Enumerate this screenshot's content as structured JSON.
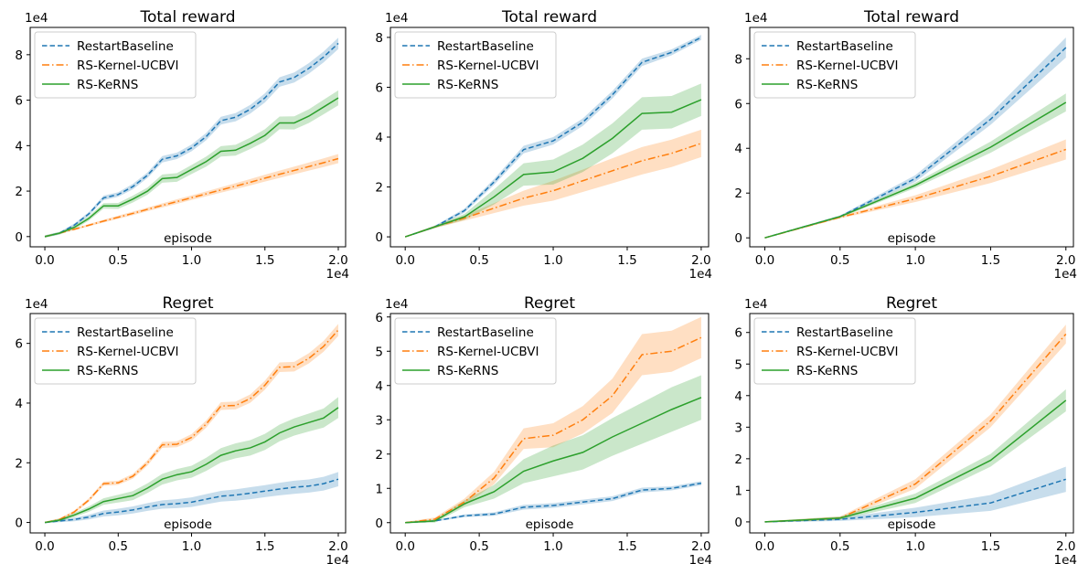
{
  "colors": {
    "RestartBaseline": "#1f77b4",
    "RS-Kernel-UCBVI": "#ff7f0e",
    "RS-KeRNS": "#2ca02c"
  },
  "chart_data": [
    {
      "type": "line",
      "title": "Total reward",
      "xlabel": "episode",
      "ylabel": "",
      "x_multiplier_label": "1e4",
      "y_multiplier_label": "1e4",
      "xlim": [
        -0.1,
        2.05
      ],
      "ylim": [
        -0.45,
        9.2
      ],
      "xticks": [
        0.0,
        0.5,
        1.0,
        1.5,
        2.0
      ],
      "xtick_labels": [
        "0.0",
        "0.5",
        "1.0",
        "1.5",
        "2.0"
      ],
      "yticks": [
        0,
        2,
        4,
        6,
        8
      ],
      "ytick_labels": [
        "0",
        "2",
        "4",
        "6",
        "8"
      ],
      "legend": "upper left",
      "x": [
        0.0,
        0.1,
        0.2,
        0.3,
        0.4,
        0.5,
        0.6,
        0.7,
        0.8,
        0.9,
        1.0,
        1.1,
        1.2,
        1.3,
        1.4,
        1.5,
        1.6,
        1.7,
        1.8,
        1.9,
        2.0
      ],
      "series": [
        {
          "name": "RestartBaseline",
          "style": "dashed",
          "values": [
            0.0,
            0.15,
            0.5,
            1.0,
            1.7,
            1.85,
            2.2,
            2.7,
            3.4,
            3.55,
            3.9,
            4.4,
            5.1,
            5.25,
            5.6,
            6.1,
            6.8,
            7.0,
            7.4,
            7.9,
            8.5
          ],
          "band": [
            0.05,
            0.05,
            0.07,
            0.08,
            0.1,
            0.1,
            0.12,
            0.12,
            0.14,
            0.14,
            0.15,
            0.16,
            0.17,
            0.18,
            0.19,
            0.2,
            0.21,
            0.22,
            0.23,
            0.24,
            0.25
          ]
        },
        {
          "name": "RS-Kernel-UCBVI",
          "style": "dashdot",
          "values": [
            0.0,
            0.15,
            0.32,
            0.5,
            0.68,
            0.85,
            1.02,
            1.2,
            1.37,
            1.54,
            1.71,
            1.88,
            2.05,
            2.22,
            2.39,
            2.57,
            2.74,
            2.91,
            3.08,
            3.25,
            3.43
          ],
          "band": [
            0.03,
            0.03,
            0.04,
            0.05,
            0.06,
            0.07,
            0.08,
            0.08,
            0.09,
            0.1,
            0.1,
            0.11,
            0.12,
            0.13,
            0.14,
            0.15,
            0.16,
            0.17,
            0.18,
            0.19,
            0.2
          ]
        },
        {
          "name": "RS-KeRNS",
          "style": "solid",
          "values": [
            0.0,
            0.15,
            0.4,
            0.8,
            1.35,
            1.35,
            1.65,
            2.0,
            2.55,
            2.6,
            2.95,
            3.3,
            3.75,
            3.8,
            4.1,
            4.45,
            5.0,
            5.0,
            5.3,
            5.7,
            6.1
          ],
          "band": [
            0.05,
            0.06,
            0.08,
            0.1,
            0.12,
            0.13,
            0.15,
            0.16,
            0.18,
            0.19,
            0.2,
            0.22,
            0.23,
            0.24,
            0.25,
            0.27,
            0.28,
            0.29,
            0.3,
            0.32,
            0.33
          ]
        }
      ]
    },
    {
      "type": "line",
      "title": "Total reward",
      "xlabel": "",
      "ylabel": "",
      "x_multiplier_label": "1e4",
      "y_multiplier_label": "1e4",
      "xlim": [
        -0.1,
        2.05
      ],
      "ylim": [
        -0.4,
        8.4
      ],
      "xticks": [
        0.0,
        0.5,
        1.0,
        1.5,
        2.0
      ],
      "xtick_labels": [
        "0.0",
        "0.5",
        "1.0",
        "1.5",
        "2.0"
      ],
      "yticks": [
        0,
        2,
        4,
        6,
        8
      ],
      "ytick_labels": [
        "0",
        "2",
        "4",
        "6",
        "8"
      ],
      "legend": "upper left",
      "x": [
        0.0,
        0.2,
        0.4,
        0.6,
        0.8,
        1.0,
        1.2,
        1.4,
        1.6,
        1.8,
        2.0
      ],
      "series": [
        {
          "name": "RestartBaseline",
          "style": "dashed",
          "values": [
            0.0,
            0.4,
            1.05,
            2.2,
            3.5,
            3.85,
            4.6,
            5.7,
            7.0,
            7.4,
            8.0
          ],
          "band": [
            0.02,
            0.05,
            0.08,
            0.12,
            0.15,
            0.15,
            0.15,
            0.15,
            0.15,
            0.12,
            0.1
          ]
        },
        {
          "name": "RS-Kernel-UCBVI",
          "style": "dashdot",
          "values": [
            0.0,
            0.4,
            0.75,
            1.15,
            1.55,
            1.85,
            2.25,
            2.65,
            3.05,
            3.35,
            3.75
          ],
          "band": [
            0.02,
            0.05,
            0.1,
            0.2,
            0.3,
            0.4,
            0.45,
            0.5,
            0.55,
            0.55,
            0.55
          ]
        },
        {
          "name": "RS-KeRNS",
          "style": "solid",
          "values": [
            0.0,
            0.4,
            0.8,
            1.6,
            2.5,
            2.6,
            3.15,
            3.95,
            4.95,
            5.0,
            5.5
          ],
          "band": [
            0.02,
            0.05,
            0.12,
            0.3,
            0.45,
            0.5,
            0.55,
            0.6,
            0.65,
            0.65,
            0.65
          ]
        }
      ]
    },
    {
      "type": "line",
      "title": "Total reward",
      "xlabel": "episode",
      "ylabel": "",
      "x_multiplier_label": "1e4",
      "y_multiplier_label": "1e4",
      "xlim": [
        -0.1,
        2.05
      ],
      "ylim": [
        -0.4,
        9.4
      ],
      "xticks": [
        0.0,
        0.5,
        1.0,
        1.5,
        2.0
      ],
      "xtick_labels": [
        "0.0",
        "0.5",
        "1.0",
        "1.5",
        "2.0"
      ],
      "yticks": [
        0,
        2,
        4,
        6,
        8
      ],
      "ytick_labels": [
        "0",
        "2",
        "4",
        "6",
        "8"
      ],
      "legend": "upper left",
      "x": [
        0.0,
        0.5,
        1.0,
        1.5,
        2.0
      ],
      "series": [
        {
          "name": "RestartBaseline",
          "style": "dashed",
          "values": [
            0.0,
            0.95,
            2.65,
            5.3,
            8.5
          ],
          "band": [
            0.02,
            0.05,
            0.15,
            0.25,
            0.45
          ]
        },
        {
          "name": "RS-Kernel-UCBVI",
          "style": "dashdot",
          "values": [
            0.0,
            0.92,
            1.75,
            2.75,
            3.95
          ],
          "band": [
            0.02,
            0.05,
            0.15,
            0.3,
            0.45
          ]
        },
        {
          "name": "RS-KeRNS",
          "style": "solid",
          "values": [
            0.0,
            0.95,
            2.35,
            4.05,
            6.05
          ],
          "band": [
            0.02,
            0.05,
            0.12,
            0.25,
            0.4
          ]
        }
      ]
    },
    {
      "type": "line",
      "title": "Regret",
      "xlabel": "episode",
      "ylabel": "",
      "x_multiplier_label": "1e4",
      "y_multiplier_label": "1e4",
      "xlim": [
        -0.1,
        2.05
      ],
      "ylim": [
        -0.35,
        7.0
      ],
      "xticks": [
        0.0,
        0.5,
        1.0,
        1.5,
        2.0
      ],
      "xtick_labels": [
        "0.0",
        "0.5",
        "1.0",
        "1.5",
        "2.0"
      ],
      "yticks": [
        0,
        2,
        4,
        6
      ],
      "ytick_labels": [
        "0",
        "2",
        "4",
        "6"
      ],
      "legend": "upper left",
      "x": [
        0.0,
        0.1,
        0.2,
        0.3,
        0.4,
        0.5,
        0.6,
        0.7,
        0.8,
        0.9,
        1.0,
        1.1,
        1.2,
        1.3,
        1.4,
        1.5,
        1.6,
        1.7,
        1.8,
        1.9,
        2.0
      ],
      "series": [
        {
          "name": "RestartBaseline",
          "style": "dashed",
          "values": [
            0.0,
            0.05,
            0.1,
            0.18,
            0.3,
            0.35,
            0.42,
            0.52,
            0.6,
            0.63,
            0.68,
            0.78,
            0.88,
            0.92,
            0.98,
            1.05,
            1.12,
            1.18,
            1.22,
            1.3,
            1.45
          ],
          "band": [
            0.02,
            0.04,
            0.06,
            0.08,
            0.1,
            0.11,
            0.12,
            0.13,
            0.14,
            0.15,
            0.16,
            0.17,
            0.18,
            0.19,
            0.2,
            0.2,
            0.21,
            0.22,
            0.22,
            0.23,
            0.24
          ]
        },
        {
          "name": "RS-Kernel-UCBVI",
          "style": "dashdot",
          "values": [
            0.0,
            0.1,
            0.35,
            0.75,
            1.3,
            1.33,
            1.55,
            2.0,
            2.6,
            2.62,
            2.85,
            3.3,
            3.9,
            3.92,
            4.15,
            4.6,
            5.2,
            5.22,
            5.5,
            5.9,
            6.45
          ],
          "band": [
            0.02,
            0.04,
            0.05,
            0.06,
            0.07,
            0.07,
            0.08,
            0.09,
            0.1,
            0.1,
            0.11,
            0.12,
            0.13,
            0.13,
            0.14,
            0.15,
            0.16,
            0.16,
            0.17,
            0.18,
            0.2
          ]
        },
        {
          "name": "RS-KeRNS",
          "style": "solid",
          "values": [
            0.0,
            0.08,
            0.25,
            0.45,
            0.7,
            0.8,
            0.9,
            1.15,
            1.45,
            1.6,
            1.7,
            1.95,
            2.25,
            2.4,
            2.5,
            2.7,
            3.0,
            3.2,
            3.35,
            3.5,
            3.85
          ],
          "band": [
            0.03,
            0.05,
            0.07,
            0.09,
            0.11,
            0.13,
            0.15,
            0.16,
            0.18,
            0.19,
            0.2,
            0.22,
            0.24,
            0.25,
            0.26,
            0.27,
            0.28,
            0.29,
            0.3,
            0.32,
            0.35
          ]
        }
      ]
    },
    {
      "type": "line",
      "title": "Regret",
      "xlabel": "episode",
      "ylabel": "",
      "x_multiplier_label": "1e4",
      "y_multiplier_label": "1e4",
      "xlim": [
        -0.1,
        2.05
      ],
      "ylim": [
        -0.3,
        6.1
      ],
      "xticks": [
        0.0,
        0.5,
        1.0,
        1.5,
        2.0
      ],
      "xtick_labels": [
        "0.0",
        "0.5",
        "1.0",
        "1.5",
        "2.0"
      ],
      "yticks": [
        0,
        1,
        2,
        3,
        4,
        5,
        6
      ],
      "ytick_labels": [
        "0",
        "1",
        "2",
        "3",
        "4",
        "5",
        "6"
      ],
      "legend": "upper left",
      "x": [
        0.0,
        0.2,
        0.4,
        0.6,
        0.8,
        1.0,
        1.2,
        1.4,
        1.6,
        1.8,
        2.0
      ],
      "series": [
        {
          "name": "RestartBaseline",
          "style": "dashed",
          "values": [
            0.0,
            0.05,
            0.2,
            0.25,
            0.45,
            0.5,
            0.6,
            0.7,
            0.95,
            1.0,
            1.15
          ],
          "band": [
            0.01,
            0.02,
            0.04,
            0.05,
            0.07,
            0.07,
            0.07,
            0.07,
            0.07,
            0.06,
            0.06
          ]
        },
        {
          "name": "RS-Kernel-UCBVI",
          "style": "dashdot",
          "values": [
            0.0,
            0.1,
            0.6,
            1.3,
            2.45,
            2.55,
            3.0,
            3.7,
            4.9,
            5.0,
            5.4
          ],
          "band": [
            0.02,
            0.05,
            0.1,
            0.18,
            0.3,
            0.35,
            0.4,
            0.5,
            0.6,
            0.6,
            0.6
          ]
        },
        {
          "name": "RS-KeRNS",
          "style": "solid",
          "values": [
            0.0,
            0.05,
            0.55,
            0.9,
            1.5,
            1.8,
            2.05,
            2.5,
            2.9,
            3.3,
            3.65
          ],
          "band": [
            0.02,
            0.05,
            0.1,
            0.2,
            0.35,
            0.45,
            0.5,
            0.55,
            0.6,
            0.65,
            0.65
          ]
        }
      ]
    },
    {
      "type": "line",
      "title": "Regret",
      "xlabel": "episode",
      "ylabel": "",
      "x_multiplier_label": "1e4",
      "y_multiplier_label": "1e4",
      "xlim": [
        -0.1,
        2.05
      ],
      "ylim": [
        -0.35,
        6.6
      ],
      "xticks": [
        0.0,
        0.5,
        1.0,
        1.5,
        2.0
      ],
      "xtick_labels": [
        "0.0",
        "0.5",
        "1.0",
        "1.5",
        "2.0"
      ],
      "yticks": [
        0,
        1,
        2,
        3,
        4,
        5,
        6
      ],
      "ytick_labels": [
        "0",
        "1",
        "2",
        "3",
        "4",
        "5",
        "6"
      ],
      "legend": "upper left",
      "x": [
        0.0,
        0.5,
        1.0,
        1.5,
        2.0
      ],
      "series": [
        {
          "name": "RestartBaseline",
          "style": "dashed",
          "values": [
            0.0,
            0.08,
            0.3,
            0.6,
            1.35
          ],
          "band": [
            0.02,
            0.05,
            0.15,
            0.25,
            0.4
          ]
        },
        {
          "name": "RS-Kernel-UCBVI",
          "style": "dashdot",
          "values": [
            0.0,
            0.12,
            1.2,
            3.2,
            5.95
          ],
          "band": [
            0.02,
            0.05,
            0.15,
            0.2,
            0.3
          ]
        },
        {
          "name": "RS-KeRNS",
          "style": "solid",
          "values": [
            0.0,
            0.12,
            0.75,
            1.95,
            3.85
          ],
          "band": [
            0.02,
            0.05,
            0.15,
            0.2,
            0.35
          ]
        }
      ]
    }
  ]
}
